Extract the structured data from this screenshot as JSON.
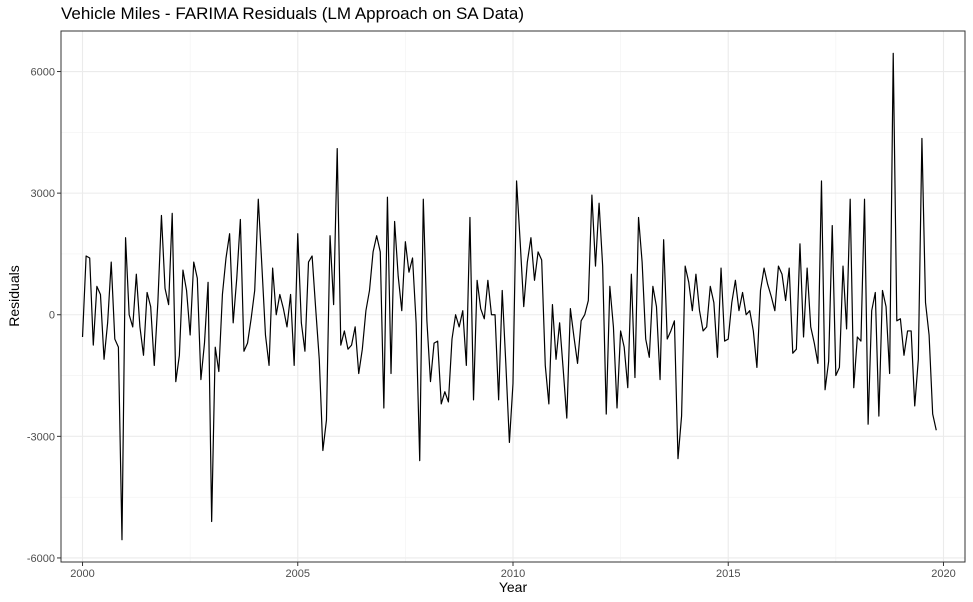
{
  "chart_data": {
    "type": "line",
    "title": "Vehicle Miles - FARIMA Residuals (LM Approach on SA Data)",
    "xlabel": "Year",
    "ylabel": "Residuals",
    "xlim": [
      1999.5,
      2020.5
    ],
    "ylim": [
      -6100,
      7000
    ],
    "x_ticks": [
      2000,
      2005,
      2010,
      2015,
      2020
    ],
    "x_tick_labels": [
      "2000",
      "2005",
      "2010",
      "2015",
      "2020"
    ],
    "y_ticks": [
      -6000,
      -3000,
      0,
      3000,
      6000
    ],
    "y_tick_labels": [
      "-6000",
      "-3000",
      "0",
      "3000",
      "6000"
    ],
    "x_minor": [
      2002.5,
      2007.5,
      2012.5,
      2017.5
    ],
    "y_minor": [
      -4500,
      -1500,
      1500,
      4500
    ],
    "grid": true,
    "line_color": "#000000",
    "series": [
      {
        "x_start": 2000.0,
        "x_step": 0.08333,
        "values": [
          -550,
          1450,
          1400,
          -750,
          700,
          500,
          -1100,
          -200,
          1300,
          -600,
          -800,
          -5550,
          1900,
          0,
          -300,
          1000,
          -300,
          -1000,
          550,
          200,
          -1250,
          300,
          2450,
          650,
          250,
          2500,
          -1650,
          -1000,
          1100,
          600,
          -500,
          1300,
          900,
          -1600,
          -700,
          800,
          -5100,
          -800,
          -1400,
          500,
          1400,
          2000,
          -200,
          900,
          2350,
          -900,
          -700,
          -100,
          600,
          2850,
          1200,
          -500,
          -1250,
          1150,
          0,
          500,
          150,
          -300,
          500,
          -1250,
          2000,
          -200,
          -900,
          1300,
          1450,
          150,
          -1100,
          -3350,
          -2600,
          1950,
          250,
          4100,
          -750,
          -400,
          -850,
          -750,
          -300,
          -1450,
          -850,
          100,
          600,
          1550,
          1950,
          1550,
          -2300,
          2900,
          -1450,
          2300,
          950,
          100,
          1800,
          1050,
          1400,
          -200,
          -3600,
          2850,
          -150,
          -1650,
          -700,
          -650,
          -2200,
          -1900,
          -2150,
          -600,
          0,
          -300,
          100,
          -1250,
          2400,
          -2100,
          850,
          150,
          -100,
          850,
          0,
          0,
          -2100,
          600,
          -1200,
          -3150,
          -1700,
          3300,
          1800,
          200,
          1300,
          1900,
          850,
          1550,
          1350,
          -1250,
          -2200,
          250,
          -1100,
          -200,
          -1350,
          -2550,
          150,
          -550,
          -1200,
          -150,
          0,
          350,
          2950,
          1200,
          2750,
          1200,
          -2450,
          700,
          -300,
          -2300,
          -400,
          -800,
          -1800,
          1000,
          -1550,
          2400,
          1300,
          -600,
          -1050,
          700,
          200,
          -1600,
          1850,
          -600,
          -400,
          -150,
          -3550,
          -2500,
          1200,
          800,
          100,
          1000,
          100,
          -400,
          -300,
          700,
          300,
          -1050,
          1150,
          -650,
          -600,
          300,
          850,
          100,
          550,
          0,
          100,
          -400,
          -1300,
          600,
          1150,
          750,
          450,
          100,
          1200,
          1000,
          350,
          1150,
          -950,
          -850,
          1750,
          -550,
          1150,
          -300,
          -700,
          -1200,
          3300,
          -1850,
          -1150,
          2200,
          -1500,
          -1300,
          1200,
          -350,
          2850,
          -1800,
          -550,
          -650,
          2850,
          -2700,
          100,
          550,
          -2500,
          600,
          200,
          -1450,
          6450,
          -150,
          -100,
          -1000,
          -400,
          -400,
          -2250,
          -1100,
          4350,
          300,
          -500,
          -2450,
          -2850
        ]
      }
    ]
  }
}
